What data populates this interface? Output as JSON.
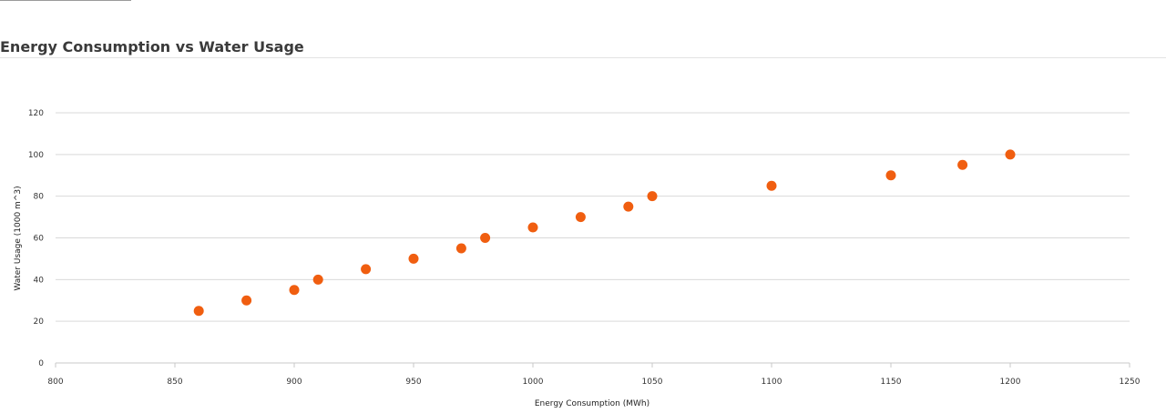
{
  "header": {
    "title": "Energy Consumption vs Water Usage"
  },
  "chart_data": {
    "type": "scatter",
    "title": "Energy Consumption vs Water Usage",
    "xlabel": "Energy Consumption (MWh)",
    "ylabel": "Water Usage (1000 m^3)",
    "xlim": [
      800,
      1250
    ],
    "ylim": [
      0,
      120
    ],
    "x_ticks": [
      800,
      850,
      900,
      950,
      1000,
      1050,
      1100,
      1150,
      1200,
      1250
    ],
    "y_ticks": [
      0,
      20,
      40,
      60,
      80,
      100,
      120
    ],
    "grid": true,
    "color": "#f05e10",
    "points": [
      {
        "x": 860,
        "y": 25
      },
      {
        "x": 880,
        "y": 30
      },
      {
        "x": 900,
        "y": 35
      },
      {
        "x": 910,
        "y": 40
      },
      {
        "x": 930,
        "y": 45
      },
      {
        "x": 950,
        "y": 50
      },
      {
        "x": 970,
        "y": 55
      },
      {
        "x": 980,
        "y": 60
      },
      {
        "x": 1000,
        "y": 65
      },
      {
        "x": 1020,
        "y": 70
      },
      {
        "x": 1040,
        "y": 75
      },
      {
        "x": 1050,
        "y": 80
      },
      {
        "x": 1100,
        "y": 85
      },
      {
        "x": 1150,
        "y": 90
      },
      {
        "x": 1180,
        "y": 95
      },
      {
        "x": 1200,
        "y": 100
      }
    ]
  }
}
